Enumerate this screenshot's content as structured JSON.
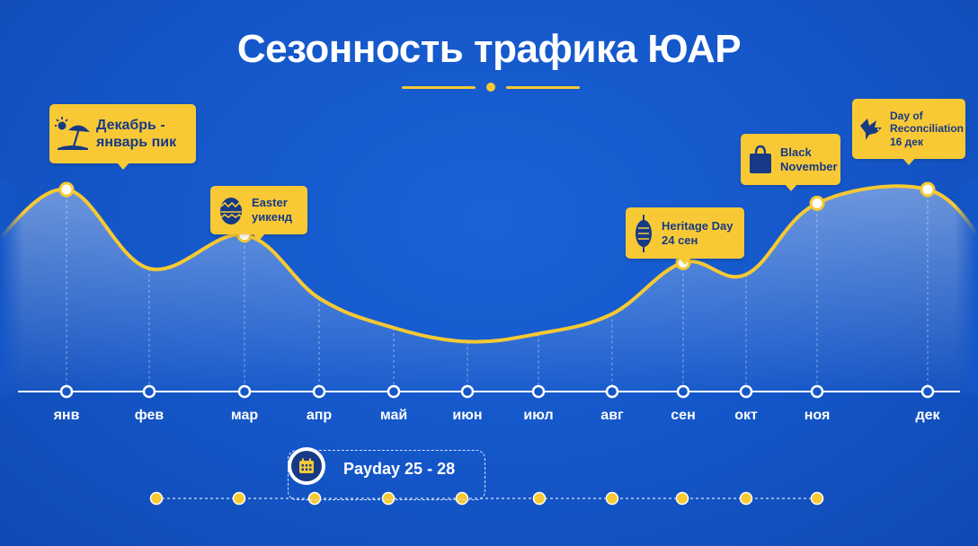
{
  "header": {
    "title": "Сезонность трафика ЮАР"
  },
  "colors": {
    "background": "#1456c8",
    "accent": "#f7c933",
    "callout_text": "#173a86",
    "axis": "#ffffff"
  },
  "chart_data": {
    "type": "area",
    "title": "Сезонность трафика ЮАР",
    "xlabel": "",
    "ylabel": "",
    "grid": false,
    "y_axis_shown": false,
    "categories": [
      "янв",
      "фев",
      "мар",
      "апр",
      "май",
      "июн",
      "июл",
      "авг",
      "сен",
      "окт",
      "ноя",
      "дек"
    ],
    "series": [
      {
        "values": [
          95,
          55,
          72,
          40,
          25,
          18,
          22,
          32,
          58,
          52,
          88,
          95
        ]
      }
    ],
    "peaks": [
      "янв",
      "мар",
      "сен",
      "ноя",
      "дек"
    ],
    "annotations": [
      {
        "month": "янв",
        "lines": [
          "Декабрь -",
          "январь пик"
        ],
        "icon": "beach-umbrella-icon"
      },
      {
        "month": "мар",
        "lines": [
          "Easter",
          "уикенд"
        ],
        "icon": "easter-egg-icon"
      },
      {
        "month": "сен",
        "lines": [
          "Heritage Day",
          "24 сен"
        ],
        "icon": "shield-spear-icon"
      },
      {
        "month": "ноя",
        "lines": [
          "Black",
          "November"
        ],
        "icon": "shopping-bag-icon"
      },
      {
        "month": "дек",
        "lines": [
          "Day of",
          "Reconciliation",
          "16 дек"
        ],
        "icon": "dove-icon"
      }
    ]
  },
  "payday": {
    "label": "Payday 25 - 28",
    "icon": "calendar-icon",
    "months": [
      "янв",
      "фев",
      "мар",
      "апр",
      "май",
      "июн",
      "июл",
      "авг",
      "сен",
      "окт",
      "ноя"
    ]
  }
}
